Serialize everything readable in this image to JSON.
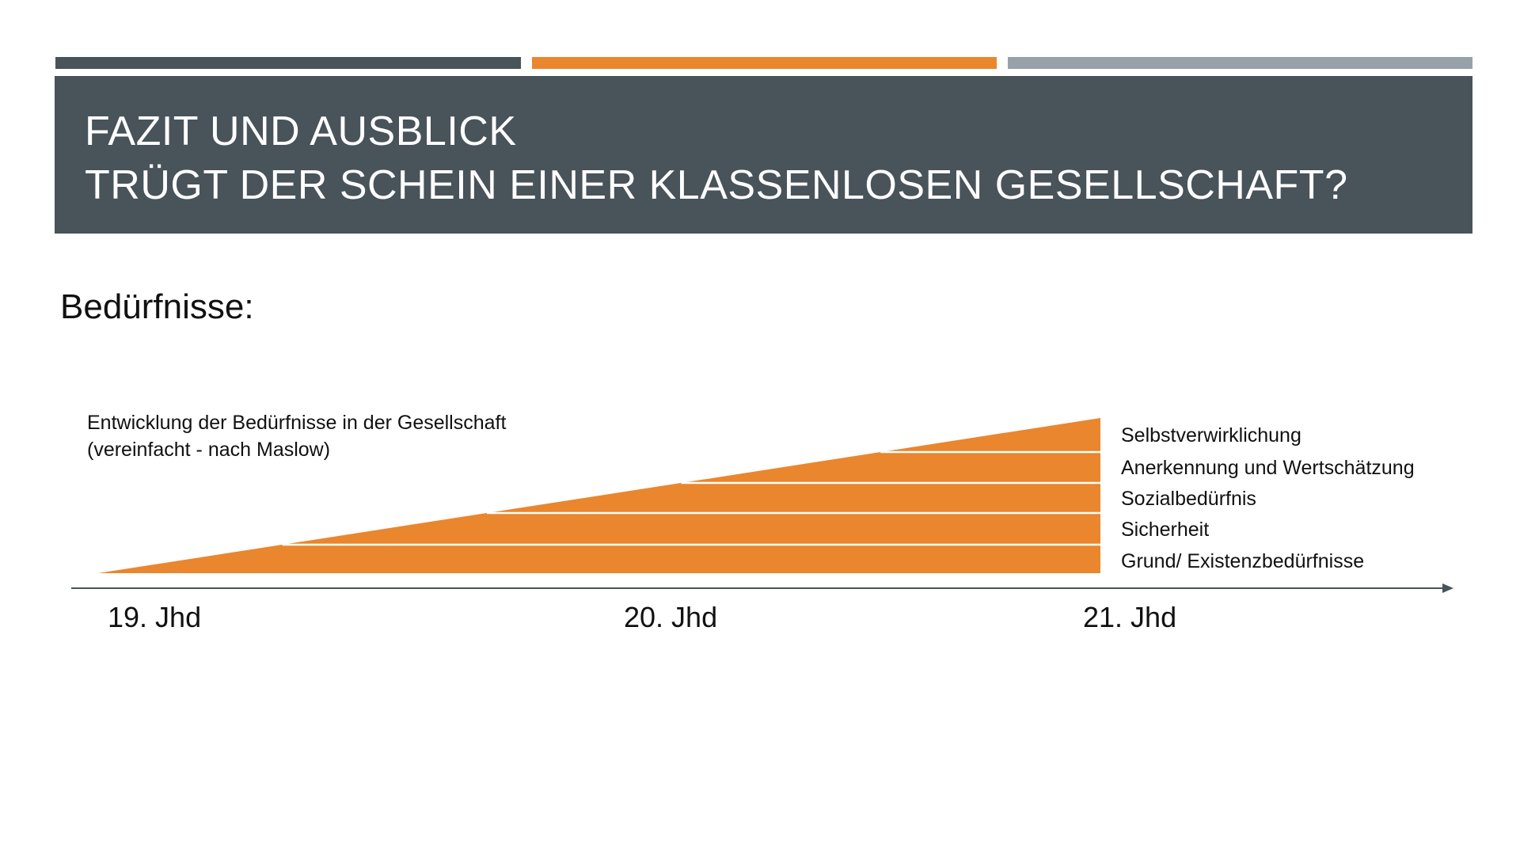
{
  "colors": {
    "dark": "#48535A",
    "accent": "#EA862E",
    "gray": "#98A1A8",
    "white": "#FFFFFF"
  },
  "header": {
    "title_line1": "FAZIT UND AUSBLICK",
    "title_line2": "TRÜGT DER SCHEIN EINER KLASSENLOSEN GESELLSCHAFT?"
  },
  "subtitle": "Bedürfnisse:",
  "diagram": {
    "caption_line1": "Entwicklung der Bedürfnisse in der Gesellschaft",
    "caption_line2": "(vereinfacht - nach Maslow)",
    "levels": [
      "Selbstverwirklichung",
      "Anerkennung und Wertschätzung",
      "Sozialbedürfnis",
      "Sicherheit",
      "Grund/ Existenzbedürfnisse"
    ],
    "axis_labels": [
      "19. Jhd",
      "20. Jhd",
      "21. Jhd"
    ]
  }
}
